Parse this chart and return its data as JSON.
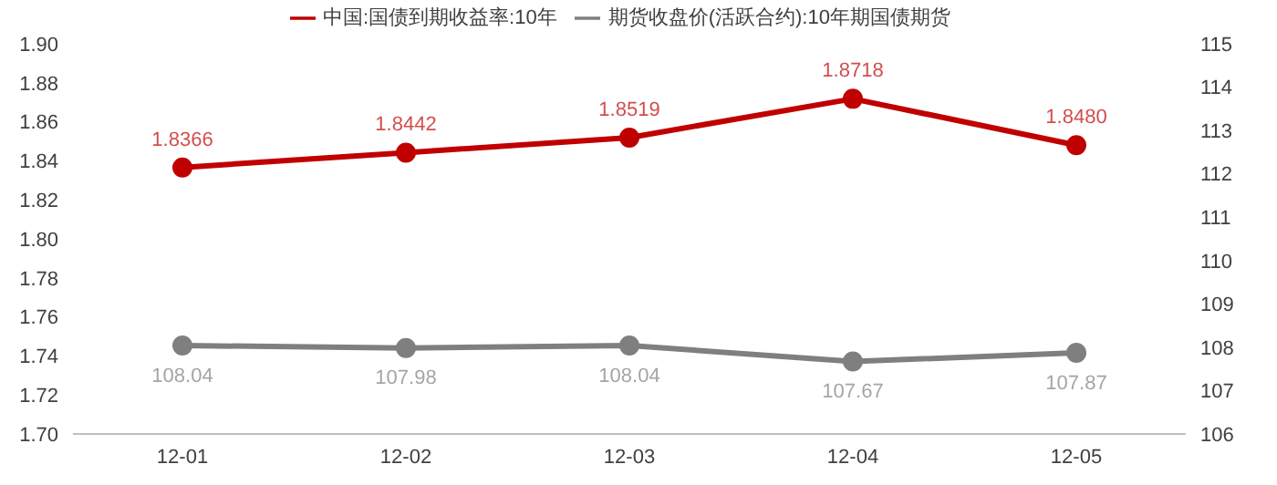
{
  "chart_data": {
    "type": "line",
    "categories": [
      "12-01",
      "12-02",
      "12-03",
      "12-04",
      "12-05"
    ],
    "series": [
      {
        "name": "中国:国债到期收益率:10年",
        "color": "#c00000",
        "values": [
          1.8366,
          1.8442,
          1.8519,
          1.8718,
          1.848
        ],
        "value_labels": [
          "1.8366",
          "1.8442",
          "1.8519",
          "1.8718",
          "1.8480"
        ]
      },
      {
        "name": "期货收盘价(活跃合约):10年期国债期货",
        "color": "#7f7f7f",
        "axis": "y2",
        "values": [
          108.04,
          107.98,
          108.04,
          107.67,
          107.87
        ],
        "value_labels": [
          "108.04",
          "107.98",
          "108.04",
          "107.67",
          "107.87"
        ]
      }
    ],
    "ylim": [
      1.7,
      1.9
    ],
    "yticks": [
      {
        "value": 1.7,
        "label": "1.70"
      },
      {
        "value": 1.72,
        "label": "1.72"
      },
      {
        "value": 1.74,
        "label": "1.74"
      },
      {
        "value": 1.76,
        "label": "1.76"
      },
      {
        "value": 1.78,
        "label": "1.78"
      },
      {
        "value": 1.8,
        "label": "1.80"
      },
      {
        "value": 1.82,
        "label": "1.82"
      },
      {
        "value": 1.84,
        "label": "1.84"
      },
      {
        "value": 1.86,
        "label": "1.86"
      },
      {
        "value": 1.88,
        "label": "1.88"
      },
      {
        "value": 1.9,
        "label": "1.90"
      }
    ],
    "y2lim": [
      106,
      115
    ],
    "y2ticks": [
      106,
      107,
      108,
      109,
      110,
      111,
      112,
      113,
      114,
      115
    ],
    "legend": "top",
    "grid": false,
    "marker": "circle",
    "line_style": "solid"
  }
}
